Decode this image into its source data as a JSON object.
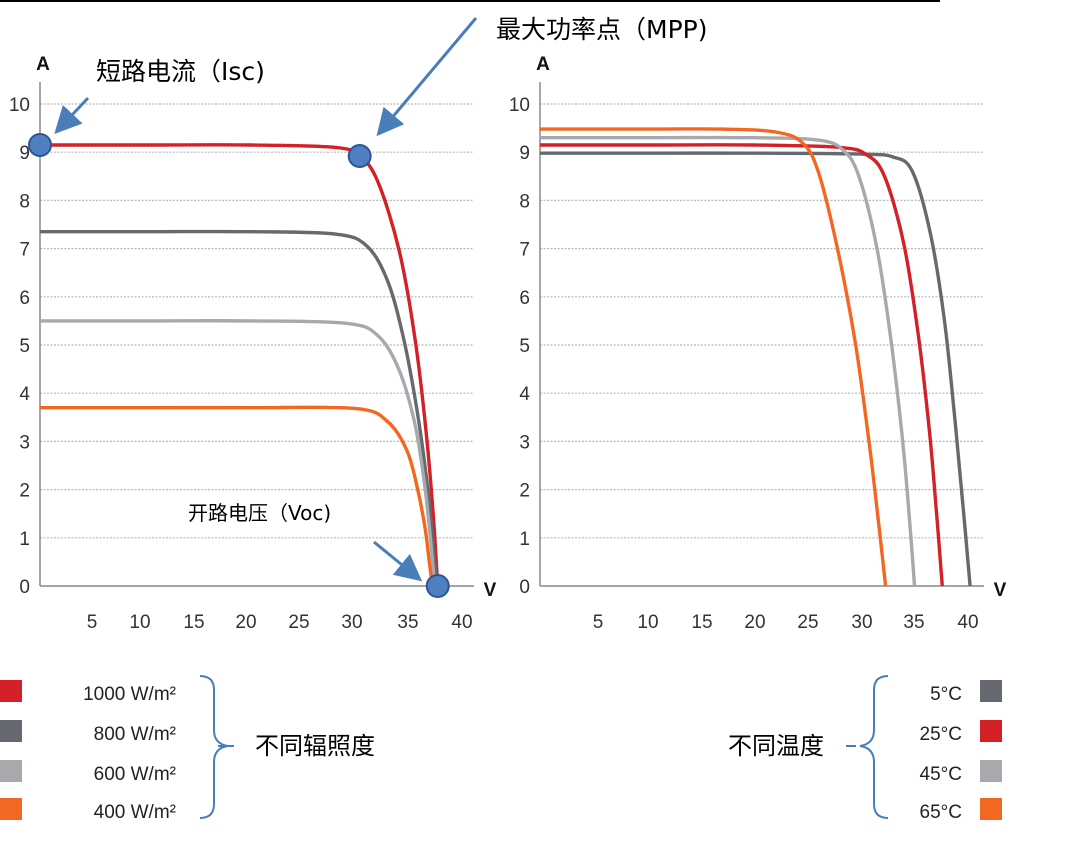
{
  "chart_data": [
    {
      "type": "line",
      "name": "irradiance-chart",
      "title": "",
      "xlabel": "V",
      "ylabel": "A",
      "xlim": [
        0,
        40
      ],
      "ylim": [
        0,
        10
      ],
      "xticks": [
        5,
        10,
        15,
        20,
        25,
        30,
        35,
        40
      ],
      "yticks": [
        0,
        1,
        2,
        3,
        4,
        5,
        6,
        7,
        8,
        9,
        10
      ],
      "grid": true,
      "series": [
        {
          "name": "1000 W/m²",
          "color": "#d42027",
          "x": [
            0,
            10,
            20,
            28,
            30.3,
            32,
            34,
            35.5,
            36.6,
            37.3,
            37.7
          ],
          "y": [
            9.15,
            9.15,
            9.15,
            9.1,
            8.92,
            8.4,
            7.0,
            5.2,
            3.2,
            1.4,
            0
          ]
        },
        {
          "name": "800 W/m²",
          "color": "#666a70",
          "x": [
            0,
            10,
            20,
            28,
            31,
            33,
            34.5,
            35.7,
            36.6,
            37.2,
            37.6
          ],
          "y": [
            7.35,
            7.35,
            7.35,
            7.3,
            7.05,
            6.3,
            5.1,
            3.7,
            2.3,
            1.0,
            0
          ]
        },
        {
          "name": "600 W/m²",
          "color": "#a7a9ac",
          "x": [
            0,
            10,
            20,
            29,
            32,
            34,
            35.5,
            36.4,
            37.0,
            37.4
          ],
          "y": [
            5.5,
            5.5,
            5.5,
            5.45,
            5.2,
            4.5,
            3.4,
            2.2,
            1.0,
            0
          ]
        },
        {
          "name": "400 W/m²",
          "color": "#f26722",
          "x": [
            0,
            10,
            20,
            30,
            33,
            34.8,
            35.8,
            36.5,
            36.9,
            37.2
          ],
          "y": [
            3.7,
            3.7,
            3.7,
            3.68,
            3.4,
            2.8,
            2.0,
            1.2,
            0.5,
            0
          ]
        }
      ],
      "annotations": [
        {
          "label": "短路电流（Isc)",
          "at": [
            0,
            9.15
          ]
        },
        {
          "label": "最大功率点（MPP)",
          "at": [
            30.3,
            8.92
          ]
        },
        {
          "label": "开路电压（Voc)",
          "at": [
            37.7,
            0
          ]
        }
      ],
      "legend": {
        "placement": "bottom-left",
        "group_label": "不同辐照度"
      }
    },
    {
      "type": "line",
      "name": "temperature-chart",
      "title": "",
      "xlabel": "V",
      "ylabel": "A",
      "xlim": [
        0,
        40
      ],
      "ylim": [
        0,
        10
      ],
      "xticks": [
        5,
        10,
        15,
        20,
        25,
        30,
        35,
        40
      ],
      "yticks": [
        0,
        1,
        2,
        3,
        4,
        5,
        6,
        7,
        8,
        9,
        10
      ],
      "grid": true,
      "series": [
        {
          "name": "5°C",
          "color": "#666a70",
          "x": [
            0,
            10,
            20,
            30,
            33,
            34.8,
            36.5,
            37.8,
            38.8,
            39.6,
            40.2
          ],
          "y": [
            8.98,
            8.98,
            8.98,
            8.96,
            8.9,
            8.6,
            7.3,
            5.5,
            3.4,
            1.5,
            0
          ]
        },
        {
          "name": "25°C",
          "color": "#d42027",
          "x": [
            0,
            10,
            20,
            28,
            30.5,
            32.2,
            34,
            35.3,
            36.4,
            37.1,
            37.6
          ],
          "y": [
            9.15,
            9.15,
            9.15,
            9.1,
            8.95,
            8.5,
            7.1,
            5.3,
            3.2,
            1.4,
            0
          ]
        },
        {
          "name": "45°C",
          "color": "#a7a9ac",
          "x": [
            0,
            10,
            20,
            26,
            28.3,
            29.8,
            31.5,
            32.8,
            33.9,
            34.6,
            35.0
          ],
          "y": [
            9.3,
            9.3,
            9.3,
            9.25,
            9.05,
            8.5,
            7.0,
            5.1,
            3.0,
            1.2,
            0
          ]
        },
        {
          "name": "65°C",
          "color": "#f26722",
          "x": [
            0,
            10,
            17,
            22,
            24.5,
            26,
            27.8,
            29.5,
            30.8,
            31.7,
            32.3
          ],
          "y": [
            9.48,
            9.48,
            9.48,
            9.42,
            9.2,
            8.6,
            7.0,
            5.0,
            2.9,
            1.2,
            0
          ]
        }
      ],
      "legend": {
        "placement": "bottom-right",
        "group_label": "不同温度"
      }
    }
  ]
}
